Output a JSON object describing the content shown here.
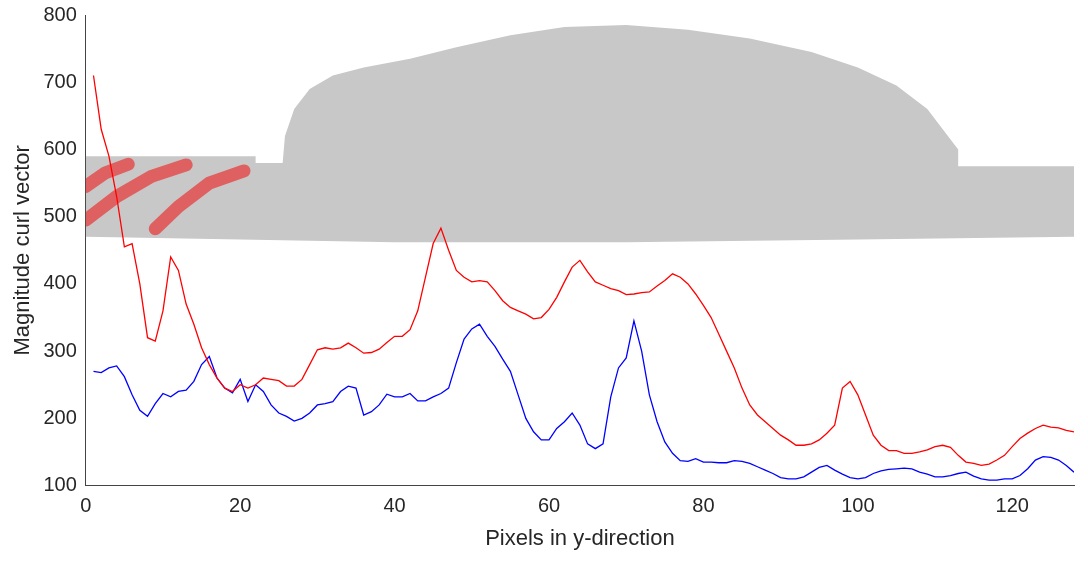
{
  "chart_data": {
    "type": "line",
    "x_label": "Pixels in y-direction",
    "y_label": "Magnitude curl vector",
    "x": [
      1,
      2,
      3,
      4,
      5,
      6,
      7,
      8,
      9,
      10,
      11,
      12,
      13,
      14,
      15,
      16,
      17,
      18,
      19,
      20,
      21,
      22,
      23,
      24,
      25,
      26,
      27,
      28,
      29,
      30,
      31,
      32,
      33,
      34,
      35,
      36,
      37,
      38,
      39,
      40,
      41,
      42,
      43,
      44,
      45,
      46,
      47,
      48,
      49,
      50,
      51,
      52,
      53,
      54,
      55,
      56,
      57,
      58,
      59,
      60,
      61,
      62,
      63,
      64,
      65,
      66,
      67,
      68,
      69,
      70,
      71,
      72,
      73,
      74,
      75,
      76,
      77,
      78,
      79,
      80,
      81,
      82,
      83,
      84,
      85,
      86,
      87,
      88,
      89,
      90,
      91,
      92,
      93,
      94,
      95,
      96,
      97,
      98,
      99,
      100,
      101,
      102,
      103,
      104,
      105,
      106,
      107,
      108,
      109,
      110,
      111,
      112,
      113,
      114,
      115,
      116,
      117,
      118,
      119,
      120,
      121,
      122,
      123,
      124,
      125,
      126,
      127,
      128
    ],
    "series": [
      {
        "color": "#ff0000",
        "values": [
          710,
          630,
          590,
          530,
          455,
          460,
          400,
          320,
          315,
          360,
          440,
          420,
          370,
          340,
          305,
          280,
          260,
          245,
          240,
          250,
          245,
          250,
          260,
          258,
          256,
          248,
          248,
          258,
          280,
          302,
          305,
          303,
          305,
          312,
          305,
          297,
          298,
          303,
          313,
          322,
          322,
          332,
          360,
          410,
          460,
          483,
          450,
          420,
          410,
          403,
          405,
          403,
          390,
          375,
          365,
          360,
          355,
          348,
          350,
          362,
          380,
          403,
          425,
          435,
          418,
          403,
          398,
          393,
          390,
          384,
          385,
          387,
          388,
          397,
          405,
          415,
          410,
          400,
          385,
          368,
          350,
          325,
          300,
          275,
          245,
          220,
          205,
          195,
          185,
          175,
          168,
          160,
          160,
          162,
          168,
          178,
          190,
          245,
          255,
          235,
          205,
          175,
          160,
          152,
          152,
          148,
          148,
          150,
          153,
          158,
          160,
          157,
          145,
          135,
          133,
          130,
          132,
          138,
          145,
          158,
          170,
          178,
          185,
          190,
          187,
          186,
          182,
          180
        ]
      },
      {
        "color": "#0000ff",
        "values": [
          270,
          268,
          275,
          278,
          262,
          235,
          212,
          203,
          222,
          237,
          232,
          240,
          242,
          255,
          280,
          292,
          260,
          245,
          238,
          258,
          225,
          250,
          240,
          220,
          208,
          203,
          196,
          200,
          208,
          220,
          222,
          225,
          240,
          248,
          245,
          205,
          210,
          220,
          236,
          232,
          232,
          237,
          226,
          226,
          232,
          237,
          245,
          283,
          318,
          333,
          340,
          322,
          307,
          288,
          270,
          235,
          200,
          180,
          168,
          168,
          185,
          195,
          208,
          190,
          162,
          155,
          162,
          232,
          275,
          290,
          345,
          300,
          235,
          195,
          165,
          148,
          137,
          136,
          140,
          135,
          135,
          134,
          134,
          137,
          136,
          133,
          128,
          123,
          118,
          112,
          110,
          110,
          113,
          120,
          127,
          130,
          123,
          117,
          112,
          110,
          112,
          118,
          122,
          124,
          125,
          126,
          125,
          120,
          117,
          113,
          113,
          115,
          118,
          120,
          114,
          110,
          108,
          108,
          110,
          110,
          115,
          125,
          138,
          143,
          142,
          138,
          130,
          120
        ]
      }
    ],
    "xlim": [
      0,
      128
    ],
    "xticks": [
      0,
      20,
      40,
      60,
      80,
      100,
      120
    ],
    "ylim": [
      100,
      800
    ],
    "yticks": [
      100,
      200,
      300,
      400,
      500,
      600,
      700,
      800
    ],
    "grid": false
  }
}
